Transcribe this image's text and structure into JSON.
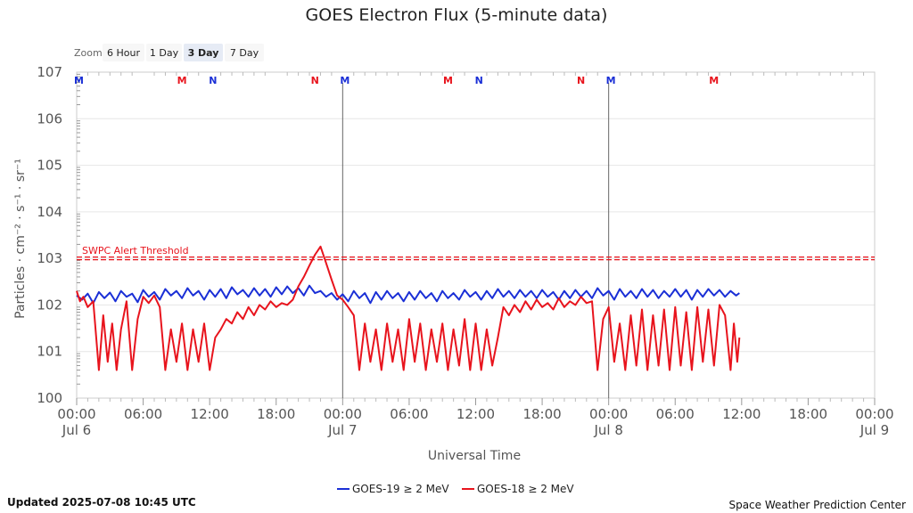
{
  "chart_data": {
    "type": "line",
    "title": "GOES Electron Flux (5-minute data)",
    "xlabel": "Universal Time",
    "ylabel": "Particles · cm⁻² · s⁻¹ · sr⁻¹",
    "y_scale": "log",
    "ylim": [
      1,
      10000000
    ],
    "y_ticks": [
      {
        "value": 1,
        "base": "10",
        "exp": "0"
      },
      {
        "value": 10,
        "base": "10",
        "exp": "1"
      },
      {
        "value": 100,
        "base": "10",
        "exp": "2"
      },
      {
        "value": 1000,
        "base": "10",
        "exp": "3"
      },
      {
        "value": 10000,
        "base": "10",
        "exp": "4"
      },
      {
        "value": 100000,
        "base": "10",
        "exp": "5"
      },
      {
        "value": 1000000,
        "base": "10",
        "exp": "6"
      },
      {
        "value": 10000000,
        "base": "10",
        "exp": "7"
      }
    ],
    "xlim": [
      "2025-07-06 00:00",
      "2025-07-09 00:00"
    ],
    "x_ticks": [
      {
        "hour": 0,
        "label": "00:00",
        "date": "Jul 6"
      },
      {
        "hour": 6,
        "label": "06:00",
        "date": ""
      },
      {
        "hour": 12,
        "label": "12:00",
        "date": ""
      },
      {
        "hour": 18,
        "label": "18:00",
        "date": ""
      },
      {
        "hour": 24,
        "label": "00:00",
        "date": "Jul 7"
      },
      {
        "hour": 30,
        "label": "06:00",
        "date": ""
      },
      {
        "hour": 36,
        "label": "12:00",
        "date": ""
      },
      {
        "hour": 42,
        "label": "18:00",
        "date": ""
      },
      {
        "hour": 48,
        "label": "00:00",
        "date": "Jul 8"
      },
      {
        "hour": 54,
        "label": "06:00",
        "date": ""
      },
      {
        "hour": 60,
        "label": "12:00",
        "date": ""
      },
      {
        "hour": 66,
        "label": "18:00",
        "date": ""
      },
      {
        "hour": 72,
        "label": "00:00",
        "date": "Jul 9"
      }
    ],
    "day_lines_hours": [
      24,
      48
    ],
    "threshold": {
      "value": 1000,
      "label": "SWPC Alert Threshold",
      "color": "#e8141d"
    },
    "markers": [
      {
        "hour": 0.2,
        "label": "M",
        "color": "#1a2fd6"
      },
      {
        "hour": 9.5,
        "label": "M",
        "color": "#e8141d"
      },
      {
        "hour": 12.3,
        "label": "N",
        "color": "#1a2fd6"
      },
      {
        "hour": 21.5,
        "label": "N",
        "color": "#e8141d"
      },
      {
        "hour": 24.2,
        "label": "M",
        "color": "#1a2fd6"
      },
      {
        "hour": 33.5,
        "label": "M",
        "color": "#e8141d"
      },
      {
        "hour": 36.3,
        "label": "N",
        "color": "#1a2fd6"
      },
      {
        "hour": 45.5,
        "label": "N",
        "color": "#e8141d"
      },
      {
        "hour": 48.2,
        "label": "M",
        "color": "#1a2fd6"
      },
      {
        "hour": 57.5,
        "label": "M",
        "color": "#e8141d"
      }
    ],
    "legend_position": "bottom-center",
    "series": [
      {
        "name": "GOES-19 ≥ 2 MeV",
        "color": "#1a2fd6",
        "points": [
          [
            0,
            160
          ],
          [
            0.5,
            130
          ],
          [
            1,
            175
          ],
          [
            1.5,
            110
          ],
          [
            2,
            190
          ],
          [
            2.5,
            140
          ],
          [
            3,
            185
          ],
          [
            3.5,
            120
          ],
          [
            4,
            200
          ],
          [
            4.5,
            150
          ],
          [
            5,
            175
          ],
          [
            5.5,
            115
          ],
          [
            6,
            210
          ],
          [
            6.5,
            150
          ],
          [
            7,
            190
          ],
          [
            7.5,
            130
          ],
          [
            8,
            220
          ],
          [
            8.5,
            160
          ],
          [
            9,
            200
          ],
          [
            9.5,
            140
          ],
          [
            10,
            230
          ],
          [
            10.5,
            160
          ],
          [
            11,
            200
          ],
          [
            11.5,
            130
          ],
          [
            12,
            210
          ],
          [
            12.5,
            150
          ],
          [
            13,
            220
          ],
          [
            13.5,
            140
          ],
          [
            14,
            240
          ],
          [
            14.5,
            170
          ],
          [
            15,
            210
          ],
          [
            15.5,
            150
          ],
          [
            16,
            230
          ],
          [
            16.5,
            160
          ],
          [
            17,
            220
          ],
          [
            17.5,
            150
          ],
          [
            18,
            240
          ],
          [
            18.5,
            170
          ],
          [
            19,
            250
          ],
          [
            19.5,
            180
          ],
          [
            20,
            230
          ],
          [
            20.5,
            160
          ],
          [
            21,
            260
          ],
          [
            21.5,
            180
          ],
          [
            22,
            200
          ],
          [
            22.5,
            150
          ],
          [
            23,
            180
          ],
          [
            23.5,
            130
          ],
          [
            24,
            170
          ],
          [
            24.5,
            120
          ],
          [
            25,
            200
          ],
          [
            25.5,
            140
          ],
          [
            26,
            180
          ],
          [
            26.5,
            110
          ],
          [
            27,
            190
          ],
          [
            27.5,
            130
          ],
          [
            28,
            200
          ],
          [
            28.5,
            140
          ],
          [
            29,
            180
          ],
          [
            29.5,
            120
          ],
          [
            30,
            190
          ],
          [
            30.5,
            130
          ],
          [
            31,
            200
          ],
          [
            31.5,
            140
          ],
          [
            32,
            180
          ],
          [
            32.5,
            120
          ],
          [
            33,
            200
          ],
          [
            33.5,
            140
          ],
          [
            34,
            180
          ],
          [
            34.5,
            130
          ],
          [
            35,
            210
          ],
          [
            35.5,
            150
          ],
          [
            36,
            190
          ],
          [
            36.5,
            130
          ],
          [
            37,
            200
          ],
          [
            37.5,
            140
          ],
          [
            38,
            220
          ],
          [
            38.5,
            150
          ],
          [
            39,
            200
          ],
          [
            39.5,
            140
          ],
          [
            40,
            210
          ],
          [
            40.5,
            150
          ],
          [
            41,
            200
          ],
          [
            41.5,
            140
          ],
          [
            42,
            210
          ],
          [
            42.5,
            150
          ],
          [
            43,
            190
          ],
          [
            43.5,
            130
          ],
          [
            44,
            200
          ],
          [
            44.5,
            140
          ],
          [
            45,
            210
          ],
          [
            45.5,
            150
          ],
          [
            46,
            200
          ],
          [
            46.5,
            140
          ],
          [
            47,
            230
          ],
          [
            47.5,
            160
          ],
          [
            48,
            200
          ],
          [
            48.5,
            130
          ],
          [
            49,
            220
          ],
          [
            49.5,
            150
          ],
          [
            50,
            200
          ],
          [
            50.5,
            140
          ],
          [
            51,
            220
          ],
          [
            51.5,
            150
          ],
          [
            52,
            210
          ],
          [
            52.5,
            140
          ],
          [
            53,
            200
          ],
          [
            53.5,
            150
          ],
          [
            54,
            220
          ],
          [
            54.5,
            150
          ],
          [
            55,
            210
          ],
          [
            55.5,
            130
          ],
          [
            56,
            210
          ],
          [
            56.5,
            150
          ],
          [
            57,
            220
          ],
          [
            57.5,
            160
          ],
          [
            58,
            210
          ],
          [
            58.5,
            150
          ],
          [
            59,
            200
          ],
          [
            59.5,
            160
          ],
          [
            59.8,
            180
          ]
        ]
      },
      {
        "name": "GOES-18 ≥ 2 MeV",
        "color": "#e8141d",
        "points": [
          [
            0,
            200
          ],
          [
            0.3,
            120
          ],
          [
            0.6,
            150
          ],
          [
            1,
            90
          ],
          [
            1.5,
            120
          ],
          [
            2,
            4
          ],
          [
            2.4,
            60
          ],
          [
            2.8,
            6
          ],
          [
            3.2,
            40
          ],
          [
            3.6,
            4
          ],
          [
            4,
            30
          ],
          [
            4.5,
            120
          ],
          [
            5,
            4
          ],
          [
            5.5,
            50
          ],
          [
            6,
            150
          ],
          [
            6.5,
            110
          ],
          [
            7,
            160
          ],
          [
            7.5,
            90
          ],
          [
            8,
            4
          ],
          [
            8.5,
            30
          ],
          [
            9,
            6
          ],
          [
            9.5,
            40
          ],
          [
            10,
            4
          ],
          [
            10.5,
            30
          ],
          [
            11,
            6
          ],
          [
            11.5,
            40
          ],
          [
            12,
            4
          ],
          [
            12.5,
            20
          ],
          [
            13,
            30
          ],
          [
            13.5,
            50
          ],
          [
            14,
            40
          ],
          [
            14.5,
            70
          ],
          [
            15,
            50
          ],
          [
            15.5,
            90
          ],
          [
            16,
            60
          ],
          [
            16.5,
            100
          ],
          [
            17,
            80
          ],
          [
            17.5,
            120
          ],
          [
            18,
            90
          ],
          [
            18.5,
            110
          ],
          [
            19,
            100
          ],
          [
            19.5,
            130
          ],
          [
            20,
            250
          ],
          [
            20.5,
            400
          ],
          [
            21,
            700
          ],
          [
            21.5,
            1200
          ],
          [
            22,
            1800
          ],
          [
            22.5,
            800
          ],
          [
            23,
            350
          ],
          [
            23.5,
            160
          ],
          [
            24,
            130
          ],
          [
            24.5,
            90
          ],
          [
            25,
            60
          ],
          [
            25.5,
            4
          ],
          [
            26,
            40
          ],
          [
            26.5,
            6
          ],
          [
            27,
            30
          ],
          [
            27.5,
            4
          ],
          [
            28,
            40
          ],
          [
            28.5,
            6
          ],
          [
            29,
            30
          ],
          [
            29.5,
            4
          ],
          [
            30,
            50
          ],
          [
            30.5,
            6
          ],
          [
            31,
            40
          ],
          [
            31.5,
            4
          ],
          [
            32,
            30
          ],
          [
            32.5,
            6
          ],
          [
            33,
            40
          ],
          [
            33.5,
            4
          ],
          [
            34,
            30
          ],
          [
            34.5,
            5
          ],
          [
            35,
            50
          ],
          [
            35.5,
            4
          ],
          [
            36,
            40
          ],
          [
            36.5,
            4
          ],
          [
            37,
            30
          ],
          [
            37.5,
            5
          ],
          [
            38,
            20
          ],
          [
            38.5,
            90
          ],
          [
            39,
            60
          ],
          [
            39.5,
            100
          ],
          [
            40,
            70
          ],
          [
            40.5,
            120
          ],
          [
            41,
            80
          ],
          [
            41.5,
            130
          ],
          [
            42,
            90
          ],
          [
            42.5,
            110
          ],
          [
            43,
            80
          ],
          [
            43.5,
            140
          ],
          [
            44,
            90
          ],
          [
            44.5,
            120
          ],
          [
            45,
            100
          ],
          [
            45.5,
            150
          ],
          [
            46,
            110
          ],
          [
            46.5,
            120
          ],
          [
            47,
            4
          ],
          [
            47.5,
            50
          ],
          [
            48,
            90
          ],
          [
            48.5,
            6
          ],
          [
            49,
            40
          ],
          [
            49.5,
            4
          ],
          [
            50,
            60
          ],
          [
            50.5,
            5
          ],
          [
            51,
            80
          ],
          [
            51.5,
            4
          ],
          [
            52,
            60
          ],
          [
            52.5,
            5
          ],
          [
            53,
            80
          ],
          [
            53.5,
            4
          ],
          [
            54,
            90
          ],
          [
            54.5,
            5
          ],
          [
            55,
            70
          ],
          [
            55.5,
            4
          ],
          [
            56,
            90
          ],
          [
            56.5,
            6
          ],
          [
            57,
            80
          ],
          [
            57.5,
            5
          ],
          [
            58,
            100
          ],
          [
            58.5,
            60
          ],
          [
            59,
            4
          ],
          [
            59.3,
            40
          ],
          [
            59.6,
            6
          ],
          [
            59.8,
            20
          ]
        ]
      }
    ]
  },
  "zoom": {
    "label": "Zoom",
    "buttons": [
      {
        "label": "6 Hour",
        "selected": false
      },
      {
        "label": "1 Day",
        "selected": false
      },
      {
        "label": "3 Day",
        "selected": true
      },
      {
        "label": "7 Day",
        "selected": false
      }
    ]
  },
  "footer": {
    "updated": "Updated 2025-07-08 10:45 UTC",
    "credit": "Space Weather Prediction Center"
  }
}
